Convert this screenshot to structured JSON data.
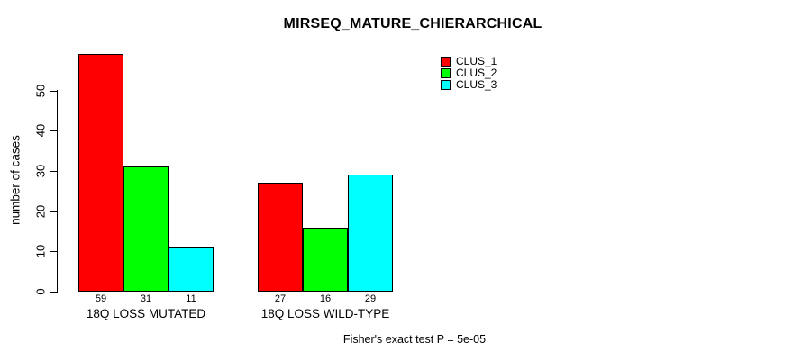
{
  "chart_data": {
    "type": "bar",
    "title": "MIRSEQ_MATURE_CHIERARCHICAL",
    "ylabel": "number of cases",
    "xlabel": "",
    "categories": [
      "18Q LOSS MUTATED",
      "18Q LOSS WILD-TYPE"
    ],
    "series": [
      {
        "name": "CLUS_1",
        "color": "#FF0000",
        "values": [
          59,
          27
        ]
      },
      {
        "name": "CLUS_2",
        "color": "#00FF00",
        "values": [
          31,
          16
        ]
      },
      {
        "name": "CLUS_3",
        "color": "#00FFFF",
        "values": [
          11,
          29
        ]
      }
    ],
    "bar_value_labels": [
      [
        59,
        31,
        11
      ],
      [
        27,
        16,
        29
      ]
    ],
    "yticks": [
      0,
      10,
      20,
      30,
      40,
      50
    ],
    "ylim": [
      0,
      59
    ],
    "grid": false,
    "legend_position": "top-right-inside",
    "annotation": "Fisher's exact test P = 5e-05",
    "background_color": "#FFFFFF",
    "text_color": "#000000",
    "bar_border_color": "#000000"
  }
}
